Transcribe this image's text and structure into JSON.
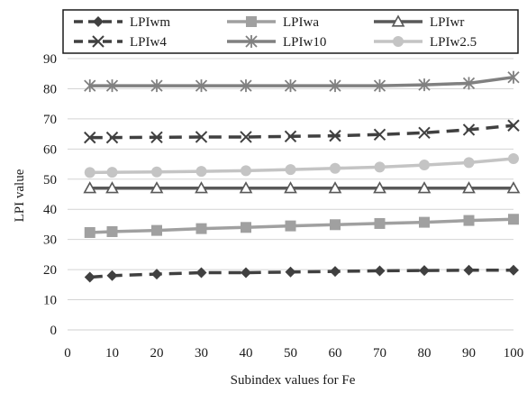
{
  "chart_data": {
    "type": "line",
    "title": "",
    "xlabel": "Subindex values for Fe",
    "ylabel": "LPI value",
    "xlim": [
      0,
      100
    ],
    "ylim": [
      0,
      90
    ],
    "x_ticks": [
      "0",
      "10",
      "20",
      "30",
      "40",
      "50",
      "60",
      "70",
      "80",
      "90",
      "100"
    ],
    "y_ticks": [
      "0",
      "10",
      "20",
      "30",
      "40",
      "50",
      "60",
      "70",
      "80",
      "90"
    ],
    "grid": "horizontal",
    "legend_position": "top",
    "x": [
      5,
      10,
      20,
      30,
      40,
      50,
      60,
      70,
      80,
      90,
      100
    ],
    "series": [
      {
        "name": "LPIwm",
        "color": "#404040",
        "dash": "dashed",
        "marker": "diamond",
        "values": [
          17.5,
          18,
          18.5,
          19,
          19,
          19.2,
          19.4,
          19.6,
          19.7,
          19.8,
          19.8
        ]
      },
      {
        "name": "LPIwa",
        "color": "#a0a0a0",
        "dash": "solid",
        "marker": "square",
        "values": [
          32.3,
          32.6,
          33,
          33.6,
          34,
          34.5,
          34.9,
          35.3,
          35.7,
          36.3,
          36.7
        ]
      },
      {
        "name": "LPIwr",
        "color": "#595959",
        "dash": "solid",
        "marker": "triangle",
        "values": [
          47,
          47,
          47,
          47,
          47,
          47,
          47,
          47,
          47,
          47,
          47
        ]
      },
      {
        "name": "LPIw4",
        "color": "#404040",
        "dash": "dashed",
        "marker": "x",
        "values": [
          63.8,
          63.8,
          63.9,
          64,
          64,
          64.2,
          64.4,
          64.8,
          65.4,
          66.4,
          67.8
        ]
      },
      {
        "name": "LPIw10",
        "color": "#808080",
        "dash": "solid",
        "marker": "star",
        "values": [
          81,
          81,
          81,
          81,
          81,
          81,
          81,
          81,
          81.3,
          81.8,
          83.8
        ]
      },
      {
        "name": "LPIw2.5",
        "color": "#c4c4c4",
        "dash": "solid",
        "marker": "circle",
        "values": [
          52.2,
          52.3,
          52.4,
          52.6,
          52.8,
          53.2,
          53.6,
          54,
          54.7,
          55.5,
          56.8
        ]
      }
    ]
  }
}
